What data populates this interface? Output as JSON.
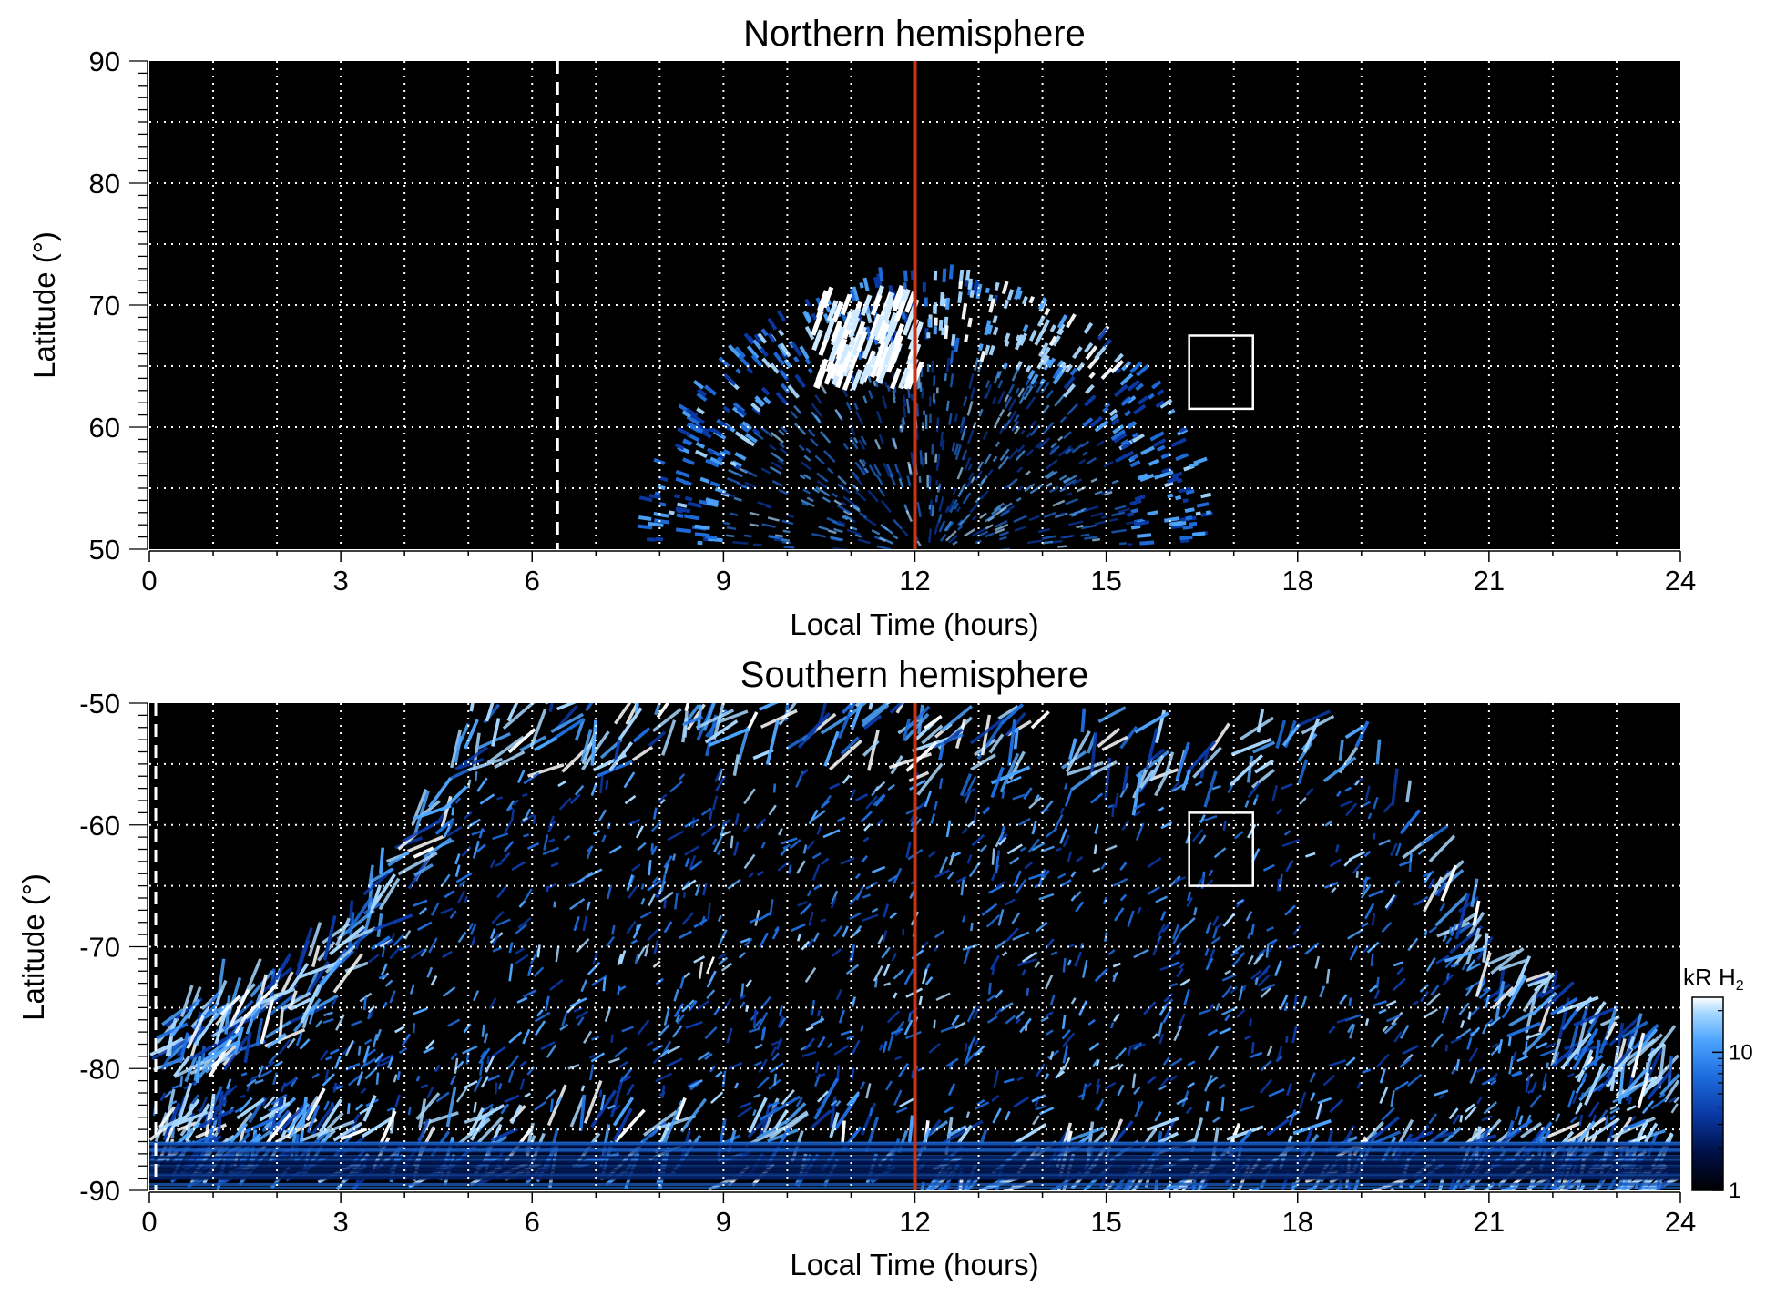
{
  "chart_data": [
    {
      "type": "heatmap",
      "title": "Northern hemisphere",
      "xlabel": "Local Time (hours)",
      "ylabel": "Latitude (°)",
      "xlim": [
        0,
        24
      ],
      "ylim": [
        50,
        90
      ],
      "xticks": [
        0,
        3,
        6,
        9,
        12,
        15,
        18,
        21,
        24
      ],
      "yticks": [
        50,
        60,
        70,
        80,
        90
      ],
      "grid": true,
      "dashed_line_x": 6.4,
      "noon_line_x": 12,
      "box": {
        "x": [
          16.3,
          17.3
        ],
        "y": [
          61.5,
          67.5
        ]
      },
      "emission_region": {
        "lt_range": [
          7.7,
          16.5
        ],
        "lat_max": 73
      },
      "line_color": "#cc3311",
      "colormap": [
        "#000000",
        "#00104a",
        "#0a3aa8",
        "#1f6fe0",
        "#4ea6ff",
        "#a8d8ff",
        "#ffffff"
      ]
    },
    {
      "type": "heatmap",
      "title": "Southern hemisphere",
      "xlabel": "Local Time (hours)",
      "ylabel": "Latitude (°)",
      "xlim": [
        0,
        24
      ],
      "ylim": [
        -90,
        -50
      ],
      "xticks": [
        0,
        3,
        6,
        9,
        12,
        15,
        18,
        21,
        24
      ],
      "yticks": [
        -90,
        -80,
        -70,
        -60,
        -50
      ],
      "grid": true,
      "dashed_line_x": 0.1,
      "noon_line_x": 12,
      "box": {
        "x": [
          16.3,
          17.3
        ],
        "y": [
          -65,
          -59
        ]
      },
      "emission_region": {
        "lat_min_at_edges": -75.5,
        "lat_max": -50
      },
      "line_color": "#cc3311",
      "colorbar": {
        "label": "kR H",
        "label_sub": "2",
        "ticks": [
          1,
          10
        ],
        "scale": "log",
        "range": [
          1,
          25
        ]
      }
    }
  ]
}
